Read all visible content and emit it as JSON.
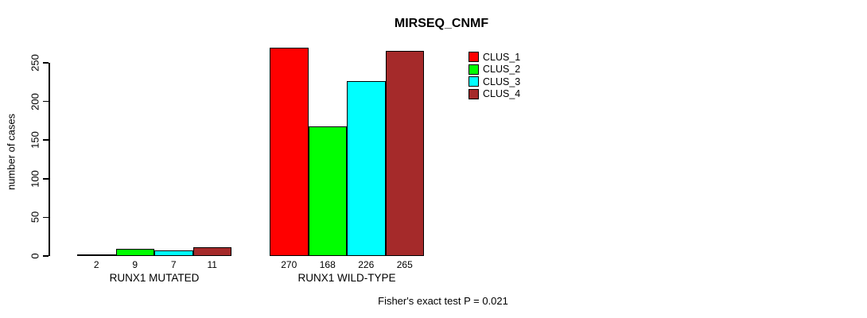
{
  "page": {
    "title": "MIRSEQ_CNMF",
    "ylabel": "number of cases",
    "footer": "Fisher's exact test P = 0.021"
  },
  "legend": {
    "position": "top-right",
    "items": [
      {
        "label": "CLUS_1",
        "color": "#FF0000"
      },
      {
        "label": "CLUS_2",
        "color": "#00FF00"
      },
      {
        "label": "CLUS_3",
        "color": "#00FFFF"
      },
      {
        "label": "CLUS_4",
        "color": "#A52A2A"
      }
    ]
  },
  "chart_data": {
    "type": "bar",
    "title": "MIRSEQ_CNMF",
    "ylabel": "number of cases",
    "xlabel": "",
    "categories": [
      "RUNX1 MUTATED",
      "RUNX1 WILD-TYPE"
    ],
    "series": [
      {
        "name": "CLUS_1",
        "color": "#FF0000",
        "values": [
          2,
          270
        ]
      },
      {
        "name": "CLUS_2",
        "color": "#00FF00",
        "values": [
          9,
          168
        ]
      },
      {
        "name": "CLUS_3",
        "color": "#00FFFF",
        "values": [
          7,
          226
        ]
      },
      {
        "name": "CLUS_4",
        "color": "#A52A2A",
        "values": [
          11,
          265
        ]
      }
    ],
    "bar_value_labels": [
      [
        2,
        9,
        7,
        11
      ],
      [
        270,
        168,
        226,
        265
      ]
    ],
    "y_ticks": [
      0,
      50,
      100,
      150,
      200,
      250
    ],
    "ylim": [
      0,
      250
    ],
    "grid": false,
    "legend_position": "top-right",
    "annotation": "Fisher's exact test P = 0.021"
  }
}
